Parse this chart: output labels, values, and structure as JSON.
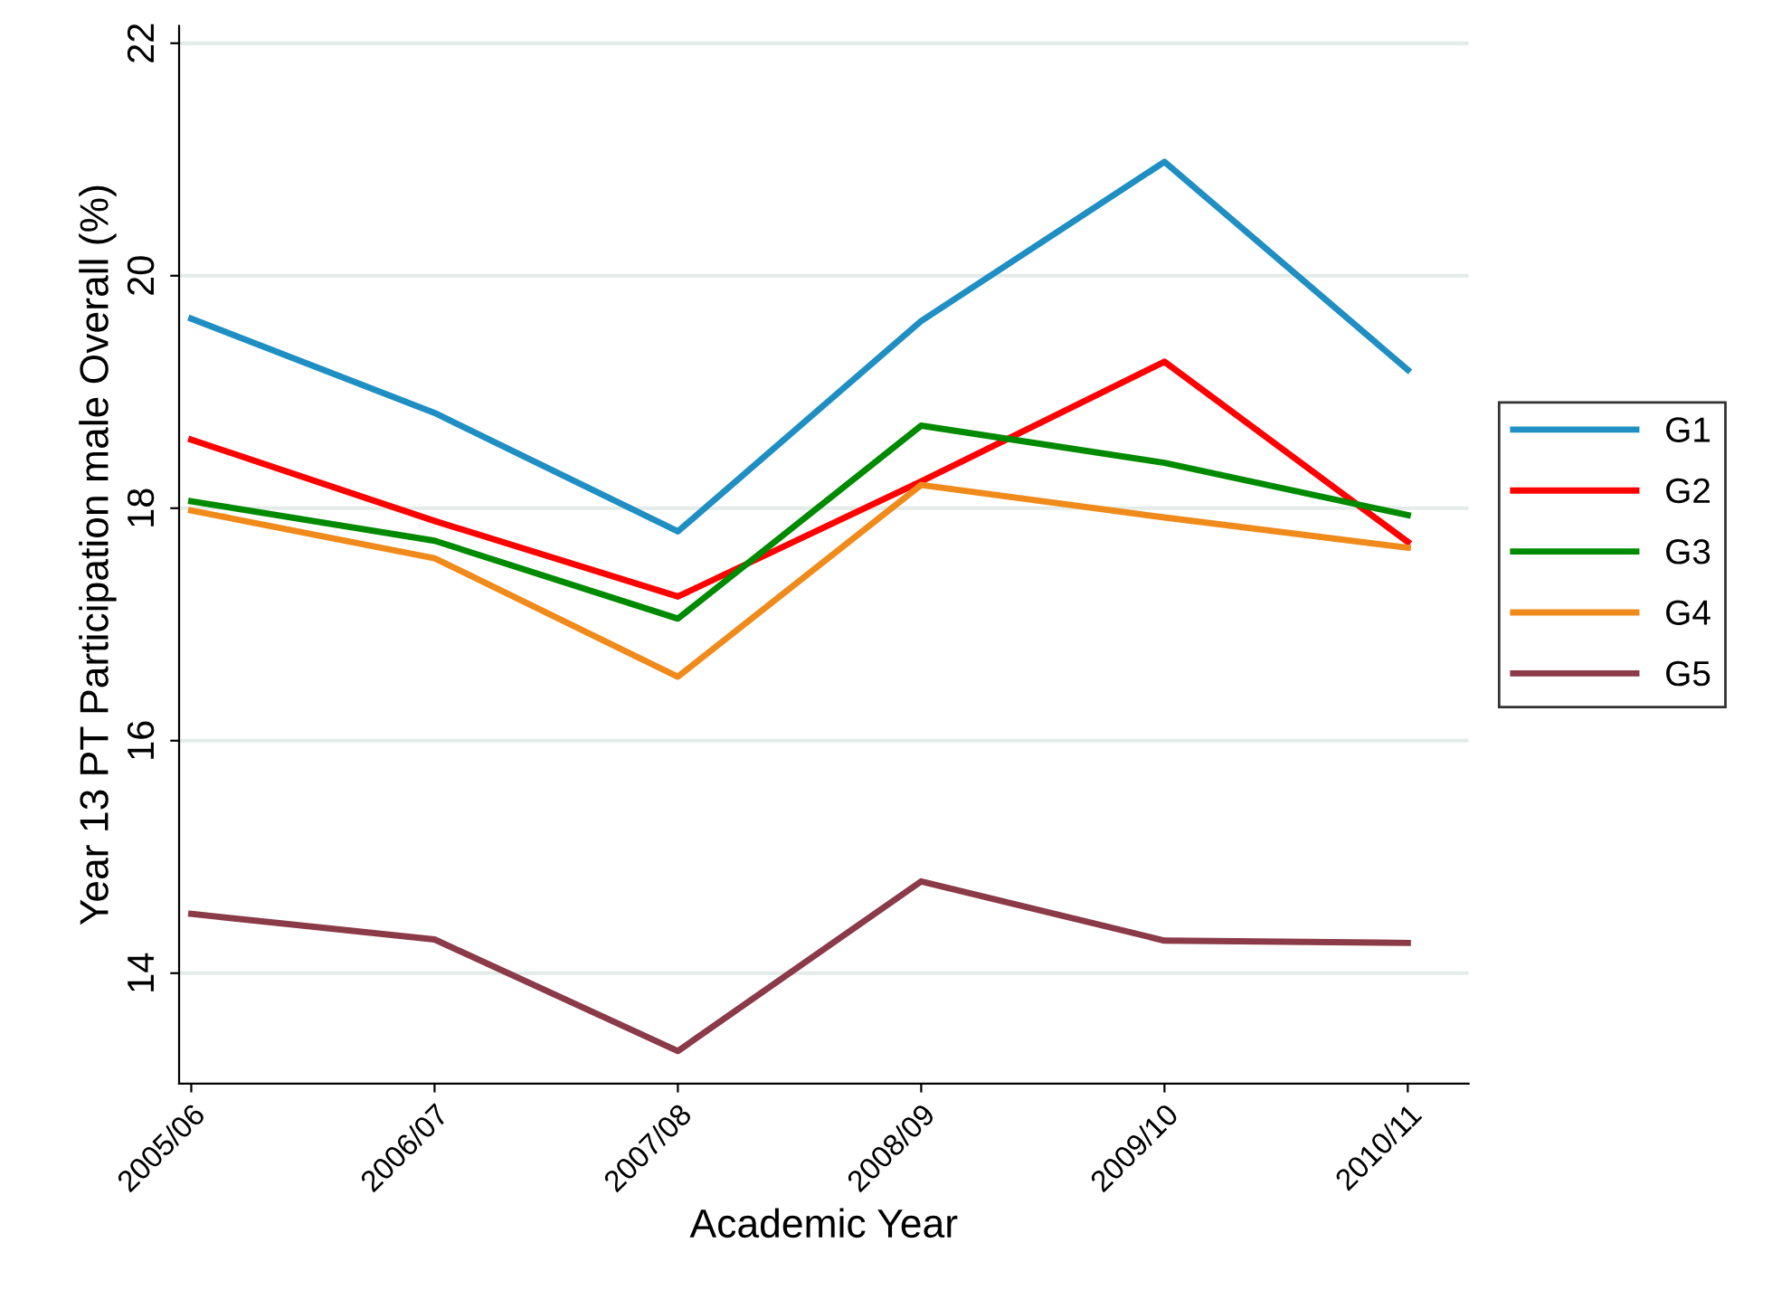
{
  "chart_data": {
    "type": "line",
    "xlabel": "Academic Year",
    "ylabel": "Year 13 PT Participation male Overall (%)",
    "categories": [
      "2005/06",
      "2006/07",
      "2007/08",
      "2008/09",
      "2009/10",
      "2010/11"
    ],
    "series": [
      {
        "name": "G1",
        "color": "#1f8fc3",
        "values": [
          19.63,
          18.82,
          17.8,
          19.61,
          20.98,
          19.19
        ]
      },
      {
        "name": "G2",
        "color": "#ff0000",
        "values": [
          18.59,
          17.89,
          17.24,
          18.23,
          19.26,
          17.71
        ]
      },
      {
        "name": "G3",
        "color": "#008a00",
        "values": [
          18.06,
          17.72,
          17.05,
          18.71,
          18.39,
          17.94
        ]
      },
      {
        "name": "G4",
        "color": "#f08a1a",
        "values": [
          17.98,
          17.57,
          16.55,
          18.2,
          17.92,
          17.66
        ]
      },
      {
        "name": "G5",
        "color": "#8b3a48",
        "values": [
          14.51,
          14.29,
          13.33,
          14.79,
          14.28,
          14.26
        ]
      }
    ],
    "ylim": [
      13.05,
      22.15
    ],
    "yticks": [
      14,
      16,
      18,
      20,
      22
    ],
    "grid": "y",
    "legend": "right",
    "marker": "none",
    "line_style": "solid"
  }
}
